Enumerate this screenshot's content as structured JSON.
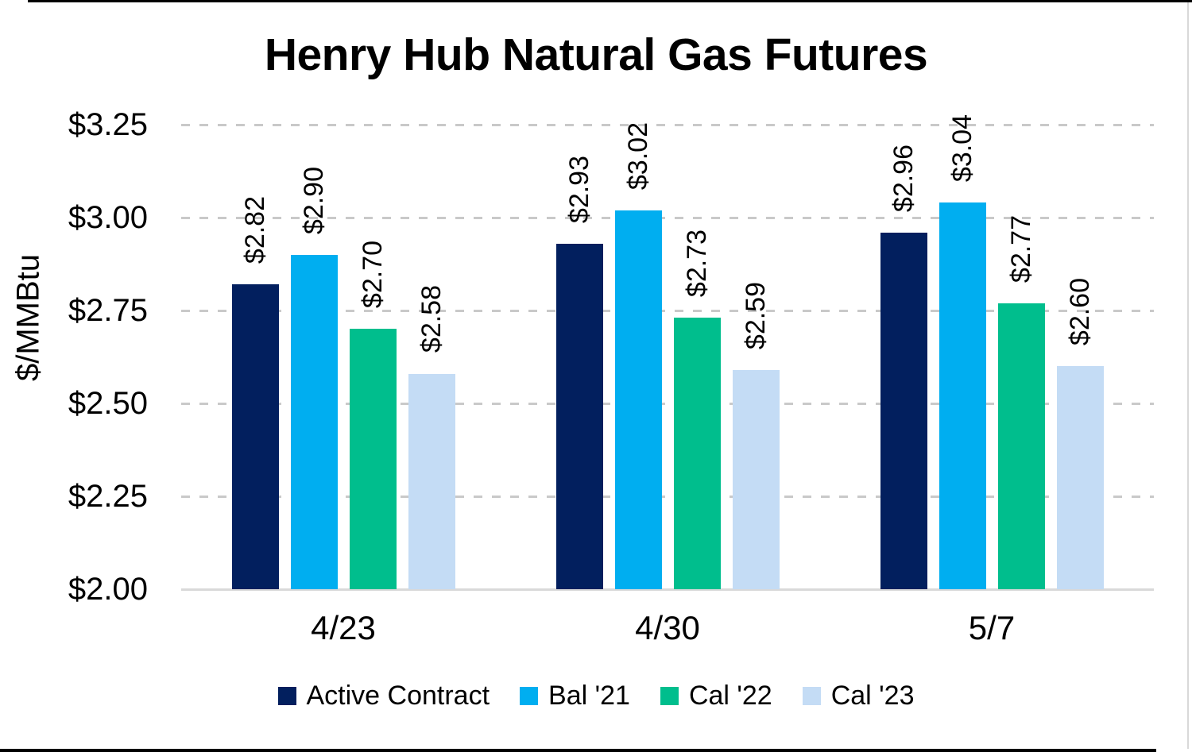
{
  "chart_data": {
    "type": "bar",
    "title": "Henry Hub Natural Gas Futures",
    "ylabel": "$/MMBtu",
    "xlabel": "",
    "categories": [
      "4/23",
      "4/30",
      "5/7"
    ],
    "series": [
      {
        "name": "Active Contract",
        "color": "#021F5E",
        "values": [
          2.82,
          2.93,
          2.96
        ],
        "labels": [
          "$2.82",
          "$2.93",
          "$2.96"
        ]
      },
      {
        "name": "Bal '21",
        "color": "#00AEF0",
        "values": [
          2.9,
          3.02,
          3.04
        ],
        "labels": [
          "$2.90",
          "$3.02",
          "$3.04"
        ]
      },
      {
        "name": "Cal '22",
        "color": "#00BE8D",
        "values": [
          2.7,
          2.73,
          2.77
        ],
        "labels": [
          "$2.70",
          "$2.73",
          "$2.77"
        ]
      },
      {
        "name": "Cal '23",
        "color": "#C4DCF5",
        "values": [
          2.58,
          2.59,
          2.6
        ],
        "labels": [
          "$2.58",
          "$2.59",
          "$2.60"
        ]
      }
    ],
    "y_axis": {
      "min": 2.0,
      "max": 3.25,
      "step": 0.25,
      "tick_labels": [
        "$2.00",
        "$2.25",
        "$2.50",
        "$2.75",
        "$3.00",
        "$3.25"
      ]
    },
    "legend": {
      "position": "bottom",
      "entries": [
        "Active Contract",
        "Bal '21",
        "Cal '22",
        "Cal '23"
      ]
    },
    "grid": {
      "dashed": true,
      "color": "#C9C9C9"
    },
    "axis_line_color": "#D9D9D9",
    "frame_colors": {
      "top_border": "#000000",
      "bottom_border": "#000000",
      "right_edge": "#D9D9D9"
    }
  }
}
